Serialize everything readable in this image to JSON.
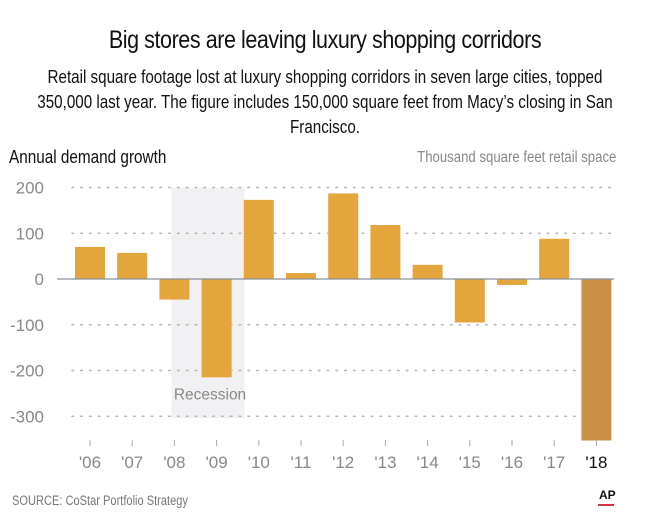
{
  "header": {
    "title": "Big stores are leaving luxury shopping corridors",
    "subtitle": "Retail square footage lost at luxury shopping corridors in seven large cities, topped 350,000 last year. The figure includes 150,000 square feet from Macy’s closing in San Francisco."
  },
  "footer": {
    "source": "SOURCE: CoStar Portfolio Strategy",
    "credit": "AP"
  },
  "colors": {
    "bar": "#e4a53c",
    "bar_highlight": "#c98f45",
    "recession_shade": "#f1f1f3",
    "gridline": "#b4b4b4",
    "zero_line": "#8a8f96",
    "ap_underline": "#d2344b"
  },
  "chart_data": {
    "type": "bar",
    "title": "Annual demand growth",
    "ylabel": "Annual demand growth",
    "units_label": "Thousand square feet retail space",
    "xlabel": "",
    "categories": [
      "'06",
      "'07",
      "'08",
      "'09",
      "'10",
      "'11",
      "'12",
      "'13",
      "'14",
      "'15",
      "'16",
      "'17",
      "'18"
    ],
    "values": [
      70,
      57,
      -45,
      -215,
      173,
      13,
      187,
      118,
      31,
      -95,
      -13,
      88,
      -353
    ],
    "highlight_category": "'18",
    "ylim": [
      -300,
      200
    ],
    "yticks": [
      200,
      100,
      0,
      -100,
      -200,
      -300
    ],
    "ytick_labels": [
      "200",
      "100",
      "0",
      "-100",
      "-200",
      "-300"
    ],
    "grid": true,
    "grid_style": "dotted",
    "annotations": [
      {
        "label": "Recession",
        "span": [
          "'08",
          "'09"
        ],
        "type": "shaded-region"
      }
    ]
  }
}
